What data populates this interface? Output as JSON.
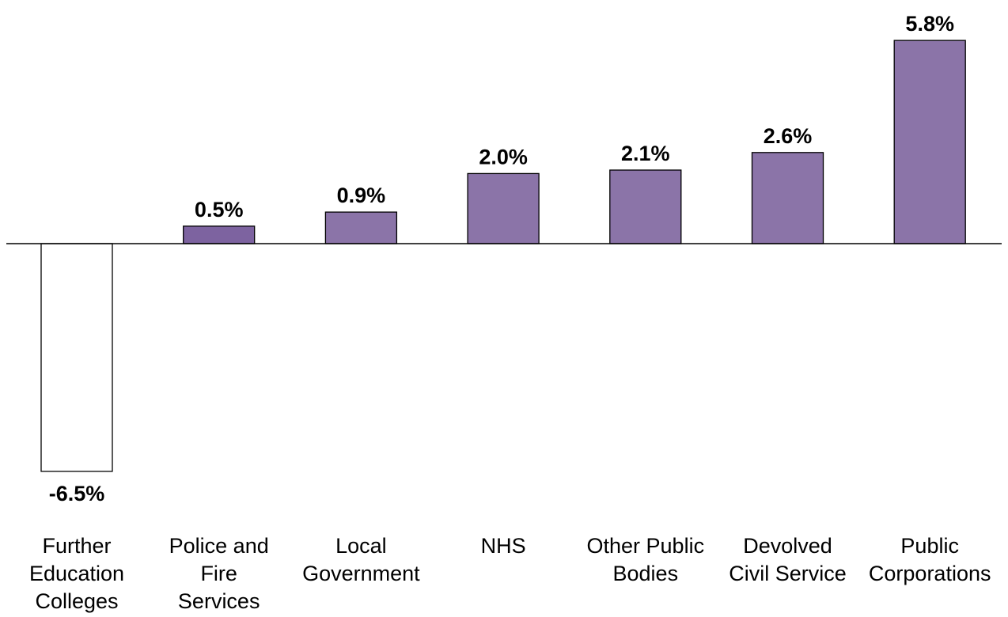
{
  "chart_data": {
    "type": "bar",
    "title": "",
    "xlabel": "",
    "ylabel": "",
    "categories": [
      [
        "Further",
        "Education",
        "Colleges"
      ],
      [
        "Police and",
        "Fire",
        "Services"
      ],
      [
        "Local",
        "Government"
      ],
      [
        "NHS"
      ],
      [
        "Other Public",
        "Bodies"
      ],
      [
        "Devolved",
        "Civil Service"
      ],
      [
        "Public",
        "Corporations"
      ]
    ],
    "values": [
      -6.5,
      0.5,
      0.9,
      2.0,
      2.1,
      2.6,
      5.8
    ],
    "value_labels": [
      "-6.5%",
      "0.5%",
      "0.9%",
      "2.0%",
      "2.1%",
      "2.6%",
      "5.8%"
    ],
    "ylim": [
      -6.5,
      5.8
    ],
    "grid": false,
    "legend": "none",
    "colors": {
      "positive_fill": "#8b74a8",
      "highlight_fill": "#7d63a0",
      "negative_fill": "#ffffff",
      "stroke": "#000000",
      "axis": "#000000"
    }
  }
}
